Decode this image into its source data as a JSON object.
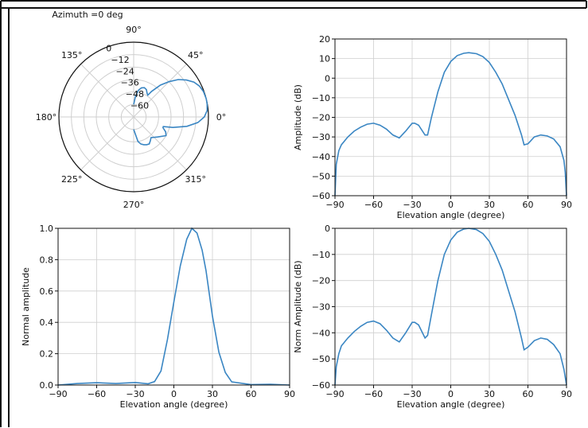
{
  "figure": {
    "background": "#ffffff",
    "frame_color": "#111111",
    "line_color": "#3a86c3",
    "grid_color": "#cfcfcf"
  },
  "chart_data": [
    {
      "type": "polar",
      "title": "Azimuth =0 deg",
      "angle_ticks": [
        0,
        45,
        90,
        135,
        180,
        225,
        270,
        315
      ],
      "angle_tick_labels": [
        "0°",
        "45°",
        "90°",
        "135°",
        "180°",
        "225°",
        "270°",
        "315°"
      ],
      "radial_range": [
        -72,
        0
      ],
      "radial_ticks": [
        0,
        -12,
        -24,
        -36,
        -48,
        -60
      ],
      "radial_tick_labels": [
        "0",
        "−12",
        "−24",
        "−36",
        "−48",
        "−60"
      ],
      "radial_label_angle_deg": 113,
      "grid": true,
      "series": [
        {
          "theta_deg": [
            -90,
            -80,
            -75,
            -70,
            -65,
            -60,
            -55,
            -50,
            -40,
            -30,
            -25,
            -20,
            -18,
            -15,
            -10,
            -5,
            0,
            5,
            10,
            14,
            20,
            25,
            30,
            35,
            40,
            45,
            50,
            55,
            57,
            60,
            65,
            70,
            75,
            80,
            85,
            90
          ],
          "r_db": [
            -60,
            -48,
            -45,
            -43.5,
            -42.5,
            -42,
            -44,
            -46,
            -42,
            -36,
            -38,
            -42,
            -42,
            -33,
            -20,
            -10,
            -4,
            -1,
            -0.2,
            0,
            -0.5,
            -2,
            -5,
            -10,
            -16,
            -24,
            -32,
            -42,
            -47,
            -46,
            -43,
            -42,
            -43,
            -46,
            -52,
            -60
          ]
        }
      ]
    },
    {
      "type": "line",
      "xlabel": "Elevation angle (degree)",
      "ylabel": "Amplitude (dB)",
      "xlim": [
        -90,
        90
      ],
      "ylim": [
        -60,
        20
      ],
      "xticks": [
        -90,
        -60,
        -30,
        0,
        30,
        60,
        90
      ],
      "xtick_labels": [
        "−90",
        "−60",
        "−30",
        "0",
        "30",
        "60",
        "90"
      ],
      "yticks": [
        -60,
        -50,
        -40,
        -30,
        -20,
        -10,
        0,
        10,
        20
      ],
      "ytick_labels": [
        "−60",
        "−50",
        "−40",
        "−30",
        "−20",
        "−10",
        "0",
        "10",
        "20"
      ],
      "grid": true,
      "series": [
        {
          "x": [
            -90,
            -89,
            -87,
            -85,
            -80,
            -75,
            -70,
            -65,
            -60,
            -55,
            -50,
            -45,
            -40,
            -35,
            -30,
            -28,
            -25,
            -20,
            -18,
            -15,
            -10,
            -5,
            0,
            5,
            10,
            14,
            20,
            25,
            30,
            35,
            40,
            45,
            50,
            55,
            57,
            60,
            65,
            70,
            75,
            80,
            85,
            88,
            89,
            90
          ],
          "y": [
            -60,
            -44,
            -37,
            -34,
            -30,
            -27,
            -25,
            -23.5,
            -23,
            -24,
            -26,
            -29,
            -30.5,
            -27,
            -23,
            -23,
            -24,
            -29,
            -29,
            -20,
            -7,
            3,
            8.5,
            11.5,
            12.7,
            13,
            12.5,
            11,
            8,
            3,
            -3,
            -11,
            -19,
            -29,
            -34,
            -33.5,
            -30,
            -29,
            -29.5,
            -31,
            -35,
            -42,
            -48,
            -60
          ]
        }
      ]
    },
    {
      "type": "line",
      "xlabel": "Elevation angle (degree)",
      "ylabel": "Normal amplitude",
      "xlim": [
        -90,
        90
      ],
      "ylim": [
        0,
        1
      ],
      "xticks": [
        -90,
        -60,
        -30,
        0,
        30,
        60,
        90
      ],
      "xtick_labels": [
        "−90",
        "−60",
        "−30",
        "0",
        "30",
        "60",
        "90"
      ],
      "yticks": [
        0,
        0.2,
        0.4,
        0.6,
        0.8,
        1
      ],
      "ytick_labels": [
        "0.0",
        "0.2",
        "0.4",
        "0.6",
        "0.8",
        "1.0"
      ],
      "grid": true,
      "series": [
        {
          "x": [
            -90,
            -75,
            -60,
            -45,
            -30,
            -20,
            -15,
            -10,
            -5,
            0,
            5,
            10,
            14,
            18,
            22,
            25,
            30,
            35,
            40,
            45,
            60,
            75,
            90
          ],
          "y": [
            0,
            0.01,
            0.015,
            0.01,
            0.016,
            0.008,
            0.022,
            0.09,
            0.29,
            0.53,
            0.76,
            0.93,
            1.0,
            0.97,
            0.86,
            0.73,
            0.44,
            0.21,
            0.08,
            0.02,
            0.003,
            0.005,
            0
          ]
        }
      ]
    },
    {
      "type": "line",
      "xlabel": "Elevation angle (degree)",
      "ylabel": "Norm Amplitude (dB)",
      "xlim": [
        -90,
        90
      ],
      "ylim": [
        -60,
        0
      ],
      "xticks": [
        -90,
        -60,
        -30,
        0,
        30,
        60,
        90
      ],
      "xtick_labels": [
        "−90",
        "−60",
        "−30",
        "0",
        "30",
        "60",
        "90"
      ],
      "yticks": [
        -60,
        -50,
        -40,
        -30,
        -20,
        -10,
        0
      ],
      "ytick_labels": [
        "−60",
        "−50",
        "−40",
        "−30",
        "−20",
        "−10",
        "0"
      ],
      "grid": true,
      "series": [
        {
          "x": [
            -90,
            -89,
            -87,
            -85,
            -80,
            -75,
            -70,
            -65,
            -60,
            -55,
            -50,
            -45,
            -40,
            -35,
            -30,
            -28,
            -25,
            -20,
            -18,
            -15,
            -10,
            -5,
            0,
            5,
            10,
            14,
            20,
            25,
            30,
            35,
            40,
            45,
            50,
            55,
            57,
            60,
            65,
            70,
            75,
            80,
            85,
            88,
            89,
            90
          ],
          "y": [
            -60,
            -53,
            -48,
            -45,
            -42,
            -39.5,
            -37.5,
            -36,
            -35.5,
            -36.5,
            -39,
            -42,
            -43.5,
            -40,
            -36,
            -36,
            -37,
            -42,
            -41,
            -33,
            -20,
            -10,
            -4.5,
            -1.5,
            -0.3,
            0,
            -0.5,
            -2,
            -5,
            -10,
            -16,
            -24,
            -32,
            -42,
            -46.5,
            -45.5,
            -43,
            -42,
            -42.5,
            -44.5,
            -48,
            -54,
            -57,
            -60
          ]
        }
      ]
    }
  ]
}
